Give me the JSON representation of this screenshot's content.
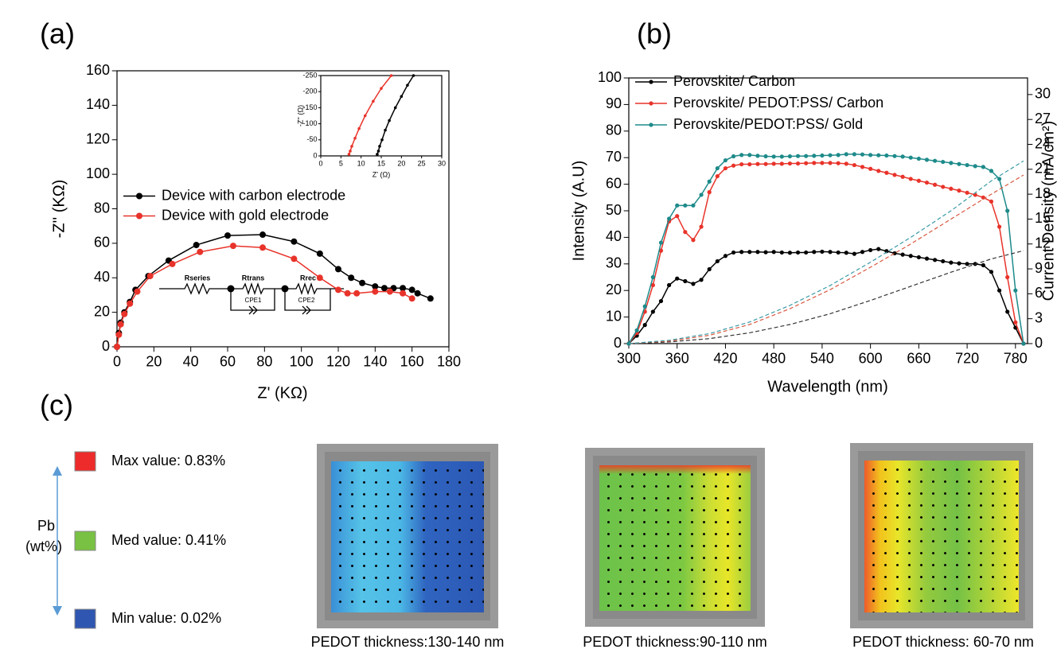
{
  "chart_data": [
    {
      "type": "line",
      "panel_label": "(a)",
      "xlabel": "Z' (KΩ)",
      "ylabel": "-Z'' (KΩ)",
      "xlim": [
        0,
        180
      ],
      "xticks": [
        0,
        20,
        40,
        60,
        80,
        100,
        120,
        140,
        160,
        180
      ],
      "ylim": [
        0,
        160
      ],
      "yticks": [
        0,
        20,
        40,
        60,
        80,
        100,
        120,
        140,
        160
      ],
      "legend": "center-left",
      "annotations": [
        "Rseries",
        "Rtrans",
        "Rrec",
        "CPE1",
        "CPE2"
      ],
      "series": [
        {
          "name": "Device with carbon electrode",
          "color": "#000000",
          "markers": true,
          "x": [
            0,
            1,
            2,
            4,
            7,
            10,
            17,
            28,
            43,
            60,
            79,
            96,
            110,
            120,
            127,
            133,
            140,
            145,
            150,
            155,
            160,
            163,
            170
          ],
          "values": [
            0,
            8,
            14,
            20,
            26,
            33,
            41,
            50,
            59,
            64.5,
            65,
            61,
            54,
            45,
            40,
            37,
            35,
            34,
            34,
            34,
            33,
            31,
            28
          ]
        },
        {
          "name": "Device with gold electrode",
          "color": "#e8332a",
          "markers": true,
          "x": [
            0,
            1,
            2,
            4,
            7,
            11,
            18,
            30,
            45,
            63,
            79,
            96,
            110,
            120,
            125,
            130,
            140,
            148,
            155,
            160
          ],
          "values": [
            0,
            7,
            13,
            19,
            25,
            32,
            41,
            48,
            55,
            58.5,
            57.5,
            51,
            40,
            33,
            31,
            31,
            32,
            32,
            31,
            28
          ]
        }
      ]
    },
    {
      "type": "line",
      "xlabel": "Z' (Ω)",
      "ylabel": "-Z'' (Ω)",
      "xlim": [
        0,
        30
      ],
      "xticks": [
        0,
        5,
        10,
        15,
        20,
        25,
        30
      ],
      "ylim": [
        0,
        -250
      ],
      "yticks": [
        0,
        -50,
        -100,
        -150,
        -200,
        -250
      ],
      "series": [
        {
          "color": "#000000",
          "markers": true,
          "x": [
            14,
            14.3,
            14.6,
            15.2,
            16,
            17,
            18.5,
            20,
            21.5,
            23
          ],
          "values": [
            -5,
            -15,
            -30,
            -50,
            -80,
            -110,
            -150,
            -185,
            -220,
            -250
          ]
        },
        {
          "color": "#e8332a",
          "markers": true,
          "x": [
            7,
            7.3,
            7.7,
            8.5,
            9.5,
            11,
            13,
            15,
            17.5
          ],
          "values": [
            -5,
            -15,
            -30,
            -55,
            -85,
            -125,
            -170,
            -210,
            -250
          ]
        }
      ]
    },
    {
      "type": "line",
      "panel_label": "(b)",
      "xlabel": "Wavelength (nm)",
      "ylabel": "Intensity (A.U)",
      "y2label": "Current Density (mA/cm²)",
      "xlim": [
        300,
        795
      ],
      "xticks": [
        300,
        360,
        420,
        480,
        540,
        600,
        660,
        720,
        780
      ],
      "ylim": [
        0,
        100
      ],
      "yticks": [
        0,
        10,
        20,
        30,
        40,
        50,
        60,
        70,
        80,
        90,
        100
      ],
      "y2lim": [
        0,
        32
      ],
      "y2ticks": [
        0,
        3,
        6,
        9,
        12,
        15,
        18,
        21,
        24,
        27,
        30
      ],
      "legend": "upper-left",
      "series": [
        {
          "name": "Perovskite/ Carbon",
          "color": "#000000",
          "markers": true,
          "x": [
            300,
            310,
            320,
            330,
            340,
            350,
            360,
            370,
            380,
            390,
            400,
            410,
            420,
            430,
            440,
            450,
            460,
            470,
            480,
            490,
            500,
            510,
            520,
            530,
            540,
            550,
            560,
            570,
            580,
            590,
            600,
            610,
            620,
            630,
            640,
            650,
            660,
            670,
            680,
            690,
            700,
            710,
            720,
            730,
            740,
            750,
            760,
            770,
            780,
            790
          ],
          "values": [
            0,
            3,
            7,
            12,
            16,
            22,
            24.5,
            23.5,
            22.5,
            24,
            28,
            31,
            33,
            34.3,
            34.5,
            34.5,
            34.5,
            34.4,
            34.5,
            34.3,
            34.2,
            34.3,
            34.3,
            34.5,
            34.6,
            34.5,
            34.3,
            34.2,
            33.8,
            34.5,
            35.2,
            35.6,
            34.8,
            34,
            33.5,
            33,
            32.5,
            32,
            31.5,
            31,
            30.5,
            30.2,
            30,
            30,
            29.5,
            27,
            20,
            12,
            6,
            0
          ]
        },
        {
          "name": "Perovskite/ PEDOT:PSS/ Carbon",
          "color": "#e8332a",
          "markers": true,
          "x": [
            300,
            310,
            320,
            330,
            340,
            350,
            360,
            370,
            380,
            390,
            400,
            410,
            420,
            430,
            440,
            450,
            460,
            470,
            480,
            490,
            500,
            510,
            520,
            530,
            540,
            550,
            560,
            570,
            580,
            590,
            600,
            610,
            620,
            630,
            640,
            650,
            660,
            670,
            680,
            690,
            700,
            710,
            720,
            730,
            740,
            750,
            760,
            770,
            780,
            790
          ],
          "values": [
            0,
            4,
            12,
            22,
            35,
            46,
            48,
            42,
            39,
            44,
            57,
            63,
            66,
            67,
            67.5,
            67.5,
            67.6,
            67.6,
            67.7,
            67.7,
            67.8,
            67.8,
            67.9,
            68,
            68,
            68,
            67.9,
            67.7,
            67.2,
            66.5,
            65.8,
            65,
            64.3,
            63.5,
            62.8,
            62,
            61.3,
            60.6,
            59.8,
            59,
            58.3,
            57.6,
            56.8,
            56,
            55,
            53.5,
            44,
            25,
            8,
            0
          ]
        },
        {
          "name": "Perovskite/PEDOT:PSS/ Gold",
          "color": "#1e8a8a",
          "markers": true,
          "x": [
            300,
            310,
            320,
            330,
            340,
            350,
            360,
            370,
            380,
            390,
            400,
            410,
            420,
            430,
            440,
            450,
            460,
            470,
            480,
            490,
            500,
            510,
            520,
            530,
            540,
            550,
            560,
            570,
            580,
            590,
            600,
            610,
            620,
            630,
            640,
            650,
            660,
            670,
            680,
            690,
            700,
            710,
            720,
            730,
            740,
            750,
            760,
            770,
            780,
            790
          ],
          "values": [
            0,
            5,
            14,
            25,
            38,
            47,
            52,
            52,
            52,
            56,
            61,
            66,
            69,
            70.5,
            71,
            71,
            70.7,
            70.5,
            70.4,
            70.4,
            70.5,
            70.6,
            70.6,
            70.7,
            70.8,
            70.9,
            71,
            71.3,
            71.3,
            71.2,
            71,
            70.9,
            70.8,
            70.6,
            70.4,
            70,
            69.6,
            69.2,
            68.8,
            68.4,
            68,
            67.6,
            67.2,
            66.8,
            66.5,
            65,
            62,
            50,
            20,
            0
          ]
        },
        {
          "color": "#333333",
          "axis": "y2",
          "line_style": "dashed",
          "markers": false,
          "x": [
            300,
            350,
            400,
            450,
            500,
            550,
            600,
            650,
            700,
            750,
            790
          ],
          "values": [
            0,
            0.2,
            0.6,
            1.3,
            2.3,
            3.6,
            5.2,
            6.9,
            8.6,
            10.2,
            11.2
          ]
        },
        {
          "color": "#d9573f",
          "axis": "y2",
          "line_style": "dashed",
          "markers": false,
          "x": [
            300,
            350,
            400,
            450,
            500,
            550,
            600,
            650,
            700,
            750,
            790
          ],
          "values": [
            0,
            0.3,
            1,
            2.3,
            4.2,
            6.5,
            9.2,
            12,
            15,
            18,
            20.3
          ]
        },
        {
          "color": "#3a9aa5",
          "axis": "y2",
          "line_style": "dashed",
          "markers": false,
          "x": [
            300,
            350,
            400,
            450,
            500,
            550,
            600,
            650,
            700,
            750,
            790
          ],
          "values": [
            0,
            0.4,
            1.2,
            2.6,
            4.6,
            7,
            9.8,
            12.8,
            16,
            19.6,
            22
          ]
        }
      ]
    }
  ],
  "panel_c": {
    "label": "(c)",
    "quantity": "Pb",
    "unit": "(wt%)",
    "legend": [
      {
        "text": "Max value: 0.83%",
        "color": "#ee2b2b"
      },
      {
        "text": "Med value: 0.41%",
        "color": "#79c143"
      },
      {
        "text": "Min value: 0.02%",
        "color": "#2f56b0"
      }
    ],
    "captions": [
      "PEDOT thickness:130-140 nm",
      "PEDOT thickness:90-110 nm",
      "PEDOT thickness: 60-70 nm"
    ]
  }
}
